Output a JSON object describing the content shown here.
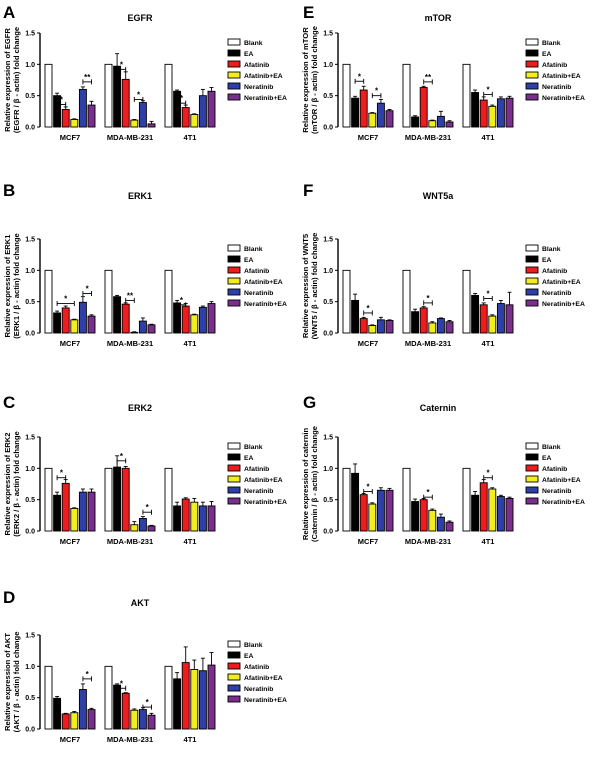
{
  "series_colors": {
    "Blank": "#ffffff",
    "EA": "#000000",
    "Afatinib": "#ee1c1c",
    "Afatinib+EA": "#f2ee1e",
    "Neratinib": "#2e3fa8",
    "Neratinib+EA": "#7a2f8c"
  },
  "chart_data": [
    {
      "id": "A",
      "type": "bar",
      "panel_label": "A",
      "title": "EGFR",
      "ylabel": [
        "Relative expression of EGFR",
        "(EGFR / β - actin) fold change"
      ],
      "xlabel": "",
      "ylim": [
        0,
        1.5
      ],
      "yticks": [
        "0.0",
        "0.5",
        "1.0",
        "1.5"
      ],
      "legend": [
        "Blank",
        "EA",
        "Afatinib",
        "Afatinib+EA",
        "Neratinib",
        "Neratinib+EA"
      ],
      "categories": [
        "MCF7",
        "MDA-MB-231",
        "4T1"
      ],
      "series": [
        {
          "name": "Blank",
          "values": [
            1.0,
            1.0,
            1.0
          ],
          "errors": [
            0,
            0,
            0
          ]
        },
        {
          "name": "EA",
          "values": [
            0.5,
            0.97,
            0.57
          ],
          "errors": [
            0.04,
            0.2,
            0.02
          ]
        },
        {
          "name": "Afatinib",
          "values": [
            0.28,
            0.76,
            0.31
          ],
          "errors": [
            0.04,
            0.12,
            0.04
          ]
        },
        {
          "name": "Afatinib+EA",
          "values": [
            0.12,
            0.11,
            0.2
          ],
          "errors": [
            0.01,
            0.01,
            0.01
          ]
        },
        {
          "name": "Neratinib",
          "values": [
            0.6,
            0.39,
            0.5
          ],
          "errors": [
            0.04,
            0.03,
            0.1
          ]
        },
        {
          "name": "Neratinib+EA",
          "values": [
            0.35,
            0.05,
            0.57
          ],
          "errors": [
            0.06,
            0.04,
            0.06
          ]
        }
      ],
      "significance": [
        {
          "group": 0,
          "from": 1,
          "to": 2,
          "level": 0.36,
          "label": "*"
        },
        {
          "group": 0,
          "from": 4,
          "to": 5,
          "level": 0.72,
          "label": "**"
        },
        {
          "group": 1,
          "from": 1,
          "to": 2,
          "level": 0.92,
          "label": "*"
        },
        {
          "group": 1,
          "from": 3,
          "to": 4,
          "level": 0.44,
          "label": "*"
        },
        {
          "group": 2,
          "from": 1,
          "to": 2,
          "level": 0.38,
          "label": "*"
        }
      ]
    },
    {
      "id": "E",
      "type": "bar",
      "panel_label": "E",
      "title": "mTOR",
      "ylabel": [
        "Relative expression of mTOR",
        "(mTOR / β - actin) fold change"
      ],
      "xlabel": "",
      "ylim": [
        0,
        1.5
      ],
      "yticks": [
        "0.0",
        "0.5",
        "1.0",
        "1.5"
      ],
      "legend": [
        "Blank",
        "EA",
        "Afatinib",
        "Afatinib+EA",
        "Neratinib",
        "Neratinib+EA"
      ],
      "categories": [
        "MCF7",
        "MDA-MB-231",
        "4T1"
      ],
      "series": [
        {
          "name": "Blank",
          "values": [
            1.0,
            1.0,
            1.0
          ],
          "errors": [
            0,
            0,
            0
          ]
        },
        {
          "name": "EA",
          "values": [
            0.46,
            0.16,
            0.55
          ],
          "errors": [
            0.03,
            0.02,
            0.04
          ]
        },
        {
          "name": "Afatinib",
          "values": [
            0.59,
            0.63,
            0.43
          ],
          "errors": [
            0.06,
            0.02,
            0.05
          ]
        },
        {
          "name": "Afatinib+EA",
          "values": [
            0.22,
            0.1,
            0.33
          ],
          "errors": [
            0.01,
            0.01,
            0.02
          ]
        },
        {
          "name": "Neratinib",
          "values": [
            0.38,
            0.17,
            0.45
          ],
          "errors": [
            0.06,
            0.08,
            0.03
          ]
        },
        {
          "name": "Neratinib+EA",
          "values": [
            0.26,
            0.08,
            0.46
          ],
          "errors": [
            0.02,
            0.02,
            0.03
          ]
        }
      ],
      "significance": [
        {
          "group": 0,
          "from": 1,
          "to": 2,
          "level": 0.73,
          "label": "*"
        },
        {
          "group": 0,
          "from": 3,
          "to": 4,
          "level": 0.5,
          "label": "*"
        },
        {
          "group": 1,
          "from": 2,
          "to": 3,
          "level": 0.72,
          "label": "**"
        },
        {
          "group": 2,
          "from": 2,
          "to": 3,
          "level": 0.52,
          "label": "*"
        }
      ]
    },
    {
      "id": "B",
      "type": "bar",
      "panel_label": "B",
      "title": "ERK1",
      "ylabel": [
        "Relative expression of ERK1",
        "(ERK1 / β - actin) fold change"
      ],
      "xlabel": "",
      "ylim": [
        0,
        1.5
      ],
      "yticks": [
        "0.0",
        "0.5",
        "1.0",
        "1.5"
      ],
      "legend": [
        "Blank",
        "EA",
        "Afatinib",
        "Afatinib+EA",
        "Neratinib",
        "Neratinib+EA"
      ],
      "categories": [
        "MCF7",
        "MDA-MB-231",
        "4T1"
      ],
      "series": [
        {
          "name": "Blank",
          "values": [
            1.0,
            1.0,
            1.0
          ],
          "errors": [
            0,
            0,
            0
          ]
        },
        {
          "name": "EA",
          "values": [
            0.32,
            0.58,
            0.48
          ],
          "errors": [
            0.03,
            0.02,
            0.04
          ]
        },
        {
          "name": "Afatinib",
          "values": [
            0.4,
            0.46,
            0.43
          ],
          "errors": [
            0.03,
            0.02,
            0.04
          ]
        },
        {
          "name": "Afatinib+EA",
          "values": [
            0.21,
            0.01,
            0.29
          ],
          "errors": [
            0.01,
            0.01,
            0.01
          ]
        },
        {
          "name": "Neratinib",
          "values": [
            0.49,
            0.19,
            0.41
          ],
          "errors": [
            0.09,
            0.05,
            0.02
          ]
        },
        {
          "name": "Neratinib+EA",
          "values": [
            0.27,
            0.13,
            0.47
          ],
          "errors": [
            0.02,
            0.01,
            0.03
          ]
        }
      ],
      "significance": [
        {
          "group": 0,
          "from": 1,
          "to": 3,
          "level": 0.47,
          "label": "*"
        },
        {
          "group": 0,
          "from": 4,
          "to": 5,
          "level": 0.63,
          "label": "*"
        },
        {
          "group": 1,
          "from": 2,
          "to": 3,
          "level": 0.52,
          "label": "**"
        },
        {
          "group": 2,
          "from": 1,
          "to": 2,
          "level": 0.45,
          "label": "*"
        }
      ]
    },
    {
      "id": "F",
      "type": "bar",
      "panel_label": "F",
      "title": "WNT5a",
      "ylabel": [
        "Relative expression of WNT5",
        "(WNT5 / β - actin) fold change"
      ],
      "xlabel": "",
      "ylim": [
        0,
        1.5
      ],
      "yticks": [
        "0.0",
        "0.5",
        "1.0",
        "1.5"
      ],
      "legend": [
        "Blank",
        "EA",
        "Afatinib",
        "Afatinib+EA",
        "Neratinib",
        "Neratinib+EA"
      ],
      "categories": [
        "MCF7",
        "MDA-MB-231",
        "4T1"
      ],
      "series": [
        {
          "name": "Blank",
          "values": [
            1.0,
            1.0,
            1.0
          ],
          "errors": [
            0,
            0,
            0
          ]
        },
        {
          "name": "EA",
          "values": [
            0.52,
            0.34,
            0.6
          ],
          "errors": [
            0.1,
            0.04,
            0.03
          ]
        },
        {
          "name": "Afatinib",
          "values": [
            0.23,
            0.4,
            0.45
          ],
          "errors": [
            0.02,
            0.02,
            0.03
          ]
        },
        {
          "name": "Afatinib+EA",
          "values": [
            0.12,
            0.16,
            0.27
          ],
          "errors": [
            0.01,
            0.02,
            0.02
          ]
        },
        {
          "name": "Neratinib",
          "values": [
            0.21,
            0.23,
            0.47
          ],
          "errors": [
            0.04,
            0.01,
            0.05
          ]
        },
        {
          "name": "Neratinib+EA",
          "values": [
            0.2,
            0.18,
            0.45
          ],
          "errors": [
            0.01,
            0.02,
            0.2
          ]
        }
      ],
      "significance": [
        {
          "group": 0,
          "from": 2,
          "to": 3,
          "level": 0.32,
          "label": "*"
        },
        {
          "group": 1,
          "from": 2,
          "to": 3,
          "level": 0.48,
          "label": "*"
        },
        {
          "group": 2,
          "from": 2,
          "to": 3,
          "level": 0.55,
          "label": "*"
        }
      ]
    },
    {
      "id": "C",
      "type": "bar",
      "panel_label": "C",
      "title": "ERK2",
      "ylabel": [
        "Relative expression of ERK2",
        "(ERK2 / β - actin) fold change"
      ],
      "xlabel": "",
      "ylim": [
        0,
        1.5
      ],
      "yticks": [
        "0.0",
        "0.5",
        "1.0",
        "1.5"
      ],
      "legend": [
        "Blank",
        "EA",
        "Afatinib",
        "Afatinib+EA",
        "Neratinib",
        "Neratinib+EA"
      ],
      "categories": [
        "MCF7",
        "MDA-MB-231",
        "4T1"
      ],
      "series": [
        {
          "name": "Blank",
          "values": [
            1.0,
            1.0,
            1.0
          ],
          "errors": [
            0,
            0,
            0
          ]
        },
        {
          "name": "EA",
          "values": [
            0.57,
            1.02,
            0.4
          ],
          "errors": [
            0.05,
            0.18,
            0.06
          ]
        },
        {
          "name": "Afatinib",
          "values": [
            0.76,
            1.0,
            0.51
          ],
          "errors": [
            0.06,
            0.03,
            0.02
          ]
        },
        {
          "name": "Afatinib+EA",
          "values": [
            0.36,
            0.1,
            0.46
          ],
          "errors": [
            0.01,
            0.05,
            0.06
          ]
        },
        {
          "name": "Neratinib",
          "values": [
            0.62,
            0.2,
            0.4
          ],
          "errors": [
            0.05,
            0.03,
            0.06
          ]
        },
        {
          "name": "Neratinib+EA",
          "values": [
            0.62,
            0.08,
            0.4
          ],
          "errors": [
            0.05,
            0.01,
            0.07
          ]
        }
      ],
      "significance": [
        {
          "group": 0,
          "from": 1,
          "to": 2,
          "level": 0.85,
          "label": "*"
        },
        {
          "group": 1,
          "from": 1,
          "to": 2,
          "level": 1.12,
          "label": "*"
        },
        {
          "group": 1,
          "from": 4,
          "to": 5,
          "level": 0.3,
          "label": "*"
        }
      ]
    },
    {
      "id": "G",
      "type": "bar",
      "panel_label": "G",
      "title": "Caternin",
      "ylabel": [
        "Relative expression of caternin",
        "(Caternin / β - actin) fold change"
      ],
      "xlabel": "",
      "ylim": [
        0,
        1.5
      ],
      "yticks": [
        "0.0",
        "0.5",
        "1.0",
        "1.5"
      ],
      "legend": [
        "Blank",
        "EA",
        "Afatinib",
        "Afatinib+EA",
        "Neratinib",
        "Neratinib+EA"
      ],
      "categories": [
        "MCF7",
        "MDA-MB-231",
        "4T1"
      ],
      "series": [
        {
          "name": "Blank",
          "values": [
            1.0,
            1.0,
            1.0
          ],
          "errors": [
            0,
            0,
            0
          ]
        },
        {
          "name": "EA",
          "values": [
            0.92,
            0.47,
            0.57
          ],
          "errors": [
            0.15,
            0.04,
            0.06
          ]
        },
        {
          "name": "Afatinib",
          "values": [
            0.58,
            0.5,
            0.77
          ],
          "errors": [
            0.02,
            0.02,
            0.05
          ]
        },
        {
          "name": "Afatinib+EA",
          "values": [
            0.43,
            0.33,
            0.67
          ],
          "errors": [
            0.02,
            0.02,
            0.02
          ]
        },
        {
          "name": "Neratinib",
          "values": [
            0.65,
            0.22,
            0.55
          ],
          "errors": [
            0.04,
            0.05,
            0.02
          ]
        },
        {
          "name": "Neratinib+EA",
          "values": [
            0.65,
            0.14,
            0.52
          ],
          "errors": [
            0.03,
            0.02,
            0.02
          ]
        }
      ],
      "significance": [
        {
          "group": 0,
          "from": 2,
          "to": 3,
          "level": 0.63,
          "label": "*"
        },
        {
          "group": 1,
          "from": 2,
          "to": 3,
          "level": 0.54,
          "label": "*"
        },
        {
          "group": 2,
          "from": 2,
          "to": 3,
          "level": 0.85,
          "label": "*"
        }
      ]
    },
    {
      "id": "D",
      "type": "bar",
      "panel_label": "D",
      "title": "AKT",
      "ylabel": [
        "Relative expression of AKT",
        "(AKT / β - actin) fold change"
      ],
      "xlabel": "",
      "ylim": [
        0,
        1.5
      ],
      "yticks": [
        "0.0",
        "0.5",
        "1.0",
        "1.5"
      ],
      "legend": [
        "Blank",
        "EA",
        "Afatinib",
        "Afatinib+EA",
        "Neratinib",
        "Neratinib+EA"
      ],
      "categories": [
        "MCF7",
        "MDA-MB-231",
        "4T1"
      ],
      "series": [
        {
          "name": "Blank",
          "values": [
            1.0,
            1.0,
            1.0
          ],
          "errors": [
            0,
            0,
            0
          ]
        },
        {
          "name": "EA",
          "values": [
            0.49,
            0.7,
            0.8
          ],
          "errors": [
            0.03,
            0.02,
            0.1
          ]
        },
        {
          "name": "Afatinib",
          "values": [
            0.24,
            0.57,
            1.06
          ],
          "errors": [
            0.01,
            0.01,
            0.25
          ]
        },
        {
          "name": "Afatinib+EA",
          "values": [
            0.26,
            0.3,
            0.95
          ],
          "errors": [
            0.02,
            0.02,
            0.15
          ]
        },
        {
          "name": "Neratinib",
          "values": [
            0.63,
            0.31,
            0.93
          ],
          "errors": [
            0.09,
            0.03,
            0.2
          ]
        },
        {
          "name": "Neratinib+EA",
          "values": [
            0.31,
            0.22,
            1.02
          ],
          "errors": [
            0.02,
            0.03,
            0.2
          ]
        }
      ],
      "significance": [
        {
          "group": 0,
          "from": 4,
          "to": 5,
          "level": 0.8,
          "label": "*"
        },
        {
          "group": 1,
          "from": 1,
          "to": 2,
          "level": 0.65,
          "label": "*"
        },
        {
          "group": 1,
          "from": 4,
          "to": 5,
          "level": 0.35,
          "label": "*"
        }
      ]
    }
  ]
}
